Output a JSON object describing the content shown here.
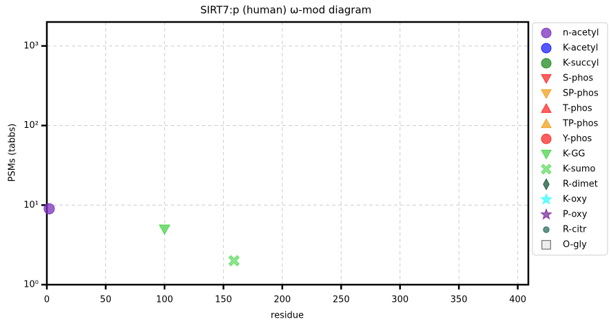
{
  "chart_data": {
    "type": "scatter",
    "title": "SIRT7:p (human) ω-mod diagram",
    "x_label": "residue",
    "y_label": "PSMs (tabbs)",
    "xlim": [
      0,
      409
    ],
    "xticks": [
      0,
      50,
      100,
      150,
      200,
      250,
      300,
      350,
      400
    ],
    "ylim": [
      1,
      2000
    ],
    "log_y": true,
    "yticks": [
      {
        "value": 1,
        "label": "10⁰"
      },
      {
        "value": 10,
        "label": "10¹"
      },
      {
        "value": 100,
        "label": "10²"
      },
      {
        "value": 1000,
        "label": "10³"
      }
    ],
    "grid": true,
    "legend": "outside right",
    "series": [
      {
        "name": "n-acetyl",
        "color": "#7b2fbf",
        "marker": "circle",
        "x": [
          2
        ],
        "values": [
          9
        ]
      },
      {
        "name": "K-acetyl",
        "color": "#1f1fff",
        "marker": "circle",
        "x": [],
        "values": []
      },
      {
        "name": "K-succyl",
        "color": "#228b22",
        "marker": "circle",
        "x": [],
        "values": []
      },
      {
        "name": "S-phos",
        "color": "#ff2a2a",
        "marker": "triangle-down",
        "x": [],
        "values": []
      },
      {
        "name": "SP-phos",
        "color": "#f0a020",
        "marker": "triangle-down",
        "x": [],
        "values": []
      },
      {
        "name": "T-phos",
        "color": "#ff2a2a",
        "marker": "triangle-up",
        "x": [],
        "values": []
      },
      {
        "name": "TP-phos",
        "color": "#f0a020",
        "marker": "triangle-up",
        "x": [],
        "values": []
      },
      {
        "name": "Y-phos",
        "color": "#ff2a2a",
        "marker": "circle",
        "x": [],
        "values": []
      },
      {
        "name": "K-GG",
        "color": "#4dd44d",
        "marker": "triangle-down",
        "x": [
          100
        ],
        "values": [
          5
        ]
      },
      {
        "name": "K-sumo",
        "color": "#66dd66",
        "marker": "x",
        "x": [
          159
        ],
        "values": [
          2
        ]
      },
      {
        "name": "R-dimet",
        "color": "#1e5a3c",
        "marker": "diamond",
        "x": [],
        "values": []
      },
      {
        "name": "K-oxy",
        "color": "#33ffff",
        "marker": "star",
        "x": [],
        "values": []
      },
      {
        "name": "P-oxy",
        "color": "#7d2fa0",
        "marker": "star",
        "x": [],
        "values": []
      },
      {
        "name": "R-citr",
        "color": "#2f6f5f",
        "marker": "small-circle",
        "x": [],
        "values": []
      },
      {
        "name": "O-gly",
        "color": "#e8e8e8",
        "marker": "square",
        "x": [],
        "values": []
      }
    ]
  }
}
